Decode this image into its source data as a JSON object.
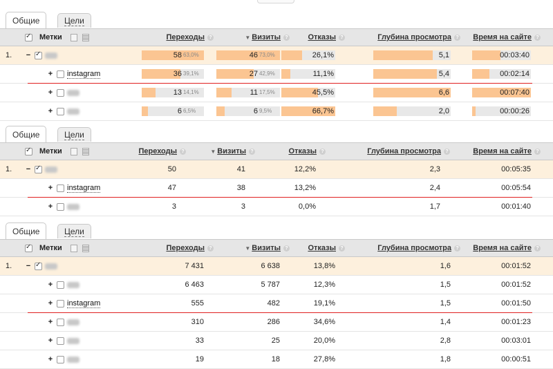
{
  "tabs": {
    "general": "Общие",
    "goals": "Цели"
  },
  "header": {
    "labels": "Метки",
    "transitions": "Переходы",
    "visits": "Визиты",
    "bounces": "Отказы",
    "depth": "Глубина просмотра",
    "time": "Время на сайте"
  },
  "colors": {
    "bar_fill": "#fbc592",
    "bar_track": "#e8e8e8",
    "top_row": "#fdf0dd",
    "underline": "#e02020"
  },
  "icons": [
    "help-icon",
    "sort-arrow-icon",
    "checkbox-icon",
    "tag-icon",
    "list-icon"
  ],
  "panel1": {
    "rows": [
      {
        "index": "1.",
        "toggle": "−",
        "checked": true,
        "label": "",
        "trans": "58",
        "trans_pct": "63,0%",
        "trans_frac": 1.0,
        "visits": "46",
        "visits_pct": "73,0%",
        "visits_frac": 1.0,
        "bounce": "26,1%",
        "bounce_frac": 0.39,
        "depth": "5,1",
        "depth_frac": 0.77,
        "time": "00:03:40",
        "time_frac": 0.48
      },
      {
        "index": "",
        "toggle": "+",
        "checked": false,
        "label": "instagram",
        "trans": "36",
        "trans_pct": "39,1%",
        "trans_frac": 0.62,
        "visits": "27",
        "visits_pct": "42,9%",
        "visits_frac": 0.59,
        "bounce": "11,1%",
        "bounce_frac": 0.17,
        "depth": "5,4",
        "depth_frac": 0.82,
        "time": "00:02:14",
        "time_frac": 0.29
      },
      {
        "index": "",
        "toggle": "+",
        "checked": false,
        "label": "",
        "trans": "13",
        "trans_pct": "14,1%",
        "trans_frac": 0.22,
        "visits": "11",
        "visits_pct": "17,5%",
        "visits_frac": 0.24,
        "bounce": "45,5%",
        "bounce_frac": 0.68,
        "depth": "6,6",
        "depth_frac": 1.0,
        "time": "00:07:40",
        "time_frac": 1.0
      },
      {
        "index": "",
        "toggle": "+",
        "checked": false,
        "label": "",
        "trans": "6",
        "trans_pct": "6,5%",
        "trans_frac": 0.1,
        "visits": "6",
        "visits_pct": "9,5%",
        "visits_frac": 0.13,
        "bounce": "66,7%",
        "bounce_frac": 1.0,
        "depth": "2,0",
        "depth_frac": 0.3,
        "time": "00:00:26",
        "time_frac": 0.06
      }
    ]
  },
  "panel2": {
    "rows": [
      {
        "index": "1.",
        "toggle": "−",
        "checked": true,
        "label": "",
        "trans": "50",
        "visits": "41",
        "bounce": "12,2%",
        "depth": "2,3",
        "time": "00:05:35"
      },
      {
        "index": "",
        "toggle": "+",
        "checked": false,
        "label": "instagram",
        "trans": "47",
        "visits": "38",
        "bounce": "13,2%",
        "depth": "2,4",
        "time": "00:05:54"
      },
      {
        "index": "",
        "toggle": "+",
        "checked": false,
        "label": "",
        "trans": "3",
        "visits": "3",
        "bounce": "0,0%",
        "depth": "1,7",
        "time": "00:01:40"
      }
    ]
  },
  "panel3": {
    "rows": [
      {
        "index": "1.",
        "toggle": "−",
        "checked": true,
        "label": "",
        "trans": "7 431",
        "visits": "6 638",
        "bounce": "13,8%",
        "depth": "1,6",
        "time": "00:01:52"
      },
      {
        "index": "",
        "toggle": "+",
        "checked": false,
        "label": "",
        "trans": "6 463",
        "visits": "5 787",
        "bounce": "12,3%",
        "depth": "1,5",
        "time": "00:01:52"
      },
      {
        "index": "",
        "toggle": "+",
        "checked": false,
        "label": "instagram",
        "trans": "555",
        "visits": "482",
        "bounce": "19,1%",
        "depth": "1,5",
        "time": "00:01:50"
      },
      {
        "index": "",
        "toggle": "+",
        "checked": false,
        "label": "",
        "trans": "310",
        "visits": "286",
        "bounce": "34,6%",
        "depth": "1,4",
        "time": "00:01:23"
      },
      {
        "index": "",
        "toggle": "+",
        "checked": false,
        "label": "",
        "trans": "33",
        "visits": "25",
        "bounce": "20,0%",
        "depth": "2,8",
        "time": "00:03:01"
      },
      {
        "index": "",
        "toggle": "+",
        "checked": false,
        "label": "",
        "trans": "19",
        "visits": "18",
        "bounce": "27,8%",
        "depth": "1,8",
        "time": "00:00:51"
      }
    ]
  }
}
